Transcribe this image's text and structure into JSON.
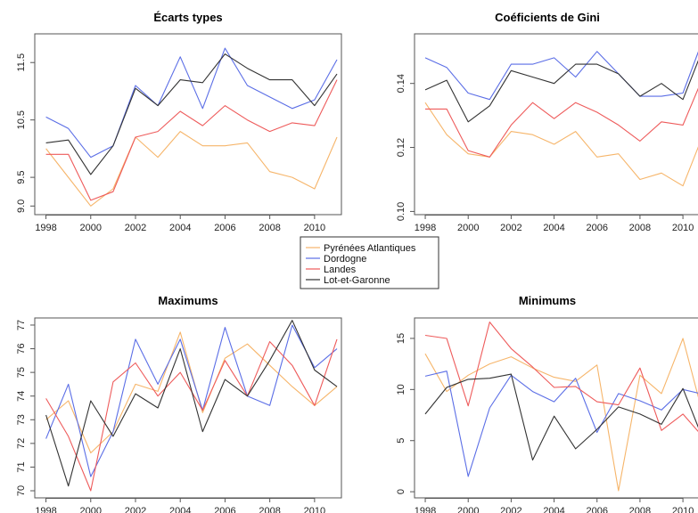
{
  "colors": {
    "Pyrénées Atlantiques": "#f6b56a",
    "Dordogne": "#5b6ee6",
    "Landes": "#ee5b5b",
    "Lot-et-Garonne": "#333333"
  },
  "legend": {
    "items": [
      "Pyrénées Atlantiques",
      "Dordogne",
      "Landes",
      "Lot-et-Garonne"
    ],
    "placement": "center"
  },
  "chart_data": [
    {
      "type": "line",
      "title": "Écarts types",
      "x": [
        1998,
        1999,
        2000,
        2001,
        2002,
        2003,
        2004,
        2005,
        2006,
        2007,
        2008,
        2009,
        2010,
        2011
      ],
      "xticks": [
        "1998",
        "2000",
        "2002",
        "2004",
        "2006",
        "2008",
        "2010"
      ],
      "xlim": [
        1997.5,
        2011.2
      ],
      "ylim": [
        8.85,
        12.0
      ],
      "yticks": [
        "9.0",
        "9.5",
        "10.5",
        "11.5"
      ],
      "series": [
        {
          "name": "Pyrénées Atlantiques",
          "values": [
            10.0,
            9.5,
            9.0,
            9.3,
            10.2,
            9.85,
            10.3,
            10.05,
            10.05,
            10.1,
            9.6,
            9.5,
            9.3,
            10.2
          ]
        },
        {
          "name": "Dordogne",
          "values": [
            10.55,
            10.35,
            9.85,
            10.05,
            11.1,
            10.75,
            11.6,
            10.7,
            11.75,
            11.1,
            10.9,
            10.7,
            10.85,
            11.55
          ]
        },
        {
          "name": "Landes",
          "values": [
            9.9,
            9.9,
            9.1,
            9.25,
            10.2,
            10.3,
            10.65,
            10.4,
            10.75,
            10.5,
            10.3,
            10.45,
            10.4,
            11.2
          ]
        },
        {
          "name": "Lot-et-Garonne",
          "values": [
            10.1,
            10.15,
            9.55,
            10.05,
            11.05,
            10.75,
            11.2,
            11.15,
            11.65,
            11.4,
            11.2,
            11.2,
            10.75,
            11.3
          ]
        }
      ]
    },
    {
      "type": "line",
      "title": "Coéficients de Gini",
      "x": [
        1998,
        1999,
        2000,
        2001,
        2002,
        2003,
        2004,
        2005,
        2006,
        2007,
        2008,
        2009,
        2010,
        2011
      ],
      "xticks": [
        "1998",
        "2000",
        "2002",
        "2004",
        "2006",
        "2008",
        "2010"
      ],
      "xlim": [
        1997.5,
        2011.2
      ],
      "ylim": [
        0.099,
        0.1555
      ],
      "yticks": [
        "0.10",
        "0.12",
        "0.14"
      ],
      "series": [
        {
          "name": "Pyrénées Atlantiques",
          "values": [
            0.134,
            0.124,
            0.118,
            0.117,
            0.125,
            0.124,
            0.121,
            0.125,
            0.117,
            0.118,
            0.11,
            0.112,
            0.108,
            0.125
          ]
        },
        {
          "name": "Dordogne",
          "values": [
            0.148,
            0.145,
            0.137,
            0.135,
            0.146,
            0.146,
            0.148,
            0.142,
            0.15,
            0.143,
            0.136,
            0.136,
            0.137,
            0.155
          ]
        },
        {
          "name": "Landes",
          "values": [
            0.132,
            0.132,
            0.119,
            0.117,
            0.127,
            0.134,
            0.129,
            0.134,
            0.131,
            0.127,
            0.122,
            0.128,
            0.127,
            0.143
          ]
        },
        {
          "name": "Lot-et-Garonne",
          "values": [
            0.138,
            0.141,
            0.128,
            0.133,
            0.144,
            0.142,
            0.14,
            0.146,
            0.146,
            0.143,
            0.136,
            0.14,
            0.135,
            0.152
          ]
        }
      ]
    },
    {
      "type": "line",
      "title": "Maximums",
      "x": [
        1998,
        1999,
        2000,
        2001,
        2002,
        2003,
        2004,
        2005,
        2006,
        2007,
        2008,
        2009,
        2010,
        2011
      ],
      "xticks": [
        "1998",
        "2000",
        "2002",
        "2004",
        "2006",
        "2008",
        "2010"
      ],
      "xlim": [
        1997.5,
        2011.2
      ],
      "ylim": [
        69.7,
        77.3
      ],
      "yticks": [
        "70",
        "71",
        "72",
        "73",
        "74",
        "75",
        "76",
        "77"
      ],
      "series": [
        {
          "name": "Pyrénées Atlantiques",
          "values": [
            73.0,
            73.8,
            71.6,
            72.5,
            74.5,
            74.2,
            76.7,
            73.3,
            75.6,
            76.2,
            75.3,
            74.4,
            73.6,
            74.4
          ]
        },
        {
          "name": "Dordogne",
          "values": [
            72.2,
            74.5,
            70.6,
            72.5,
            76.4,
            74.5,
            76.4,
            73.4,
            76.9,
            74.0,
            73.6,
            77.0,
            75.2,
            76.0
          ]
        },
        {
          "name": "Landes",
          "values": [
            73.9,
            72.3,
            70.0,
            74.6,
            75.4,
            74.0,
            75.0,
            73.4,
            75.5,
            74.0,
            76.3,
            75.3,
            73.6,
            76.4
          ]
        },
        {
          "name": "Lot-et-Garonne",
          "values": [
            73.2,
            70.2,
            73.8,
            72.3,
            74.1,
            73.5,
            76.0,
            72.5,
            74.7,
            74.0,
            75.5,
            77.2,
            75.1,
            74.4
          ]
        }
      ]
    },
    {
      "type": "line",
      "title": "Minimums",
      "x": [
        1998,
        1999,
        2000,
        2001,
        2002,
        2003,
        2004,
        2005,
        2006,
        2007,
        2008,
        2009,
        2010,
        2011
      ],
      "xticks": [
        "1998",
        "2000",
        "2002",
        "2004",
        "2006",
        "2008",
        "2010"
      ],
      "xlim": [
        1997.5,
        2011.2
      ],
      "ylim": [
        -0.6,
        17.0
      ],
      "yticks": [
        "0",
        "5",
        "10",
        "15"
      ],
      "series": [
        {
          "name": "Pyrénées Atlantiques",
          "values": [
            13.5,
            9.8,
            11.4,
            12.5,
            13.2,
            12.1,
            11.2,
            10.8,
            12.4,
            0.1,
            11.4,
            9.6,
            15.0,
            7.0
          ]
        },
        {
          "name": "Dordogne",
          "values": [
            11.3,
            11.8,
            1.5,
            8.2,
            11.4,
            9.8,
            8.8,
            11.1,
            5.8,
            9.6,
            8.9,
            8.0,
            10.0,
            9.5
          ]
        },
        {
          "name": "Landes",
          "values": [
            15.3,
            15.0,
            8.4,
            16.6,
            14.0,
            12.2,
            10.2,
            10.3,
            8.8,
            8.5,
            12.1,
            6.0,
            7.6,
            5.2
          ]
        },
        {
          "name": "Lot-et-Garonne",
          "values": [
            7.6,
            10.2,
            11.0,
            11.1,
            11.5,
            3.1,
            7.4,
            4.2,
            6.1,
            8.3,
            7.6,
            6.6,
            10.1,
            4.8
          ]
        }
      ]
    }
  ]
}
